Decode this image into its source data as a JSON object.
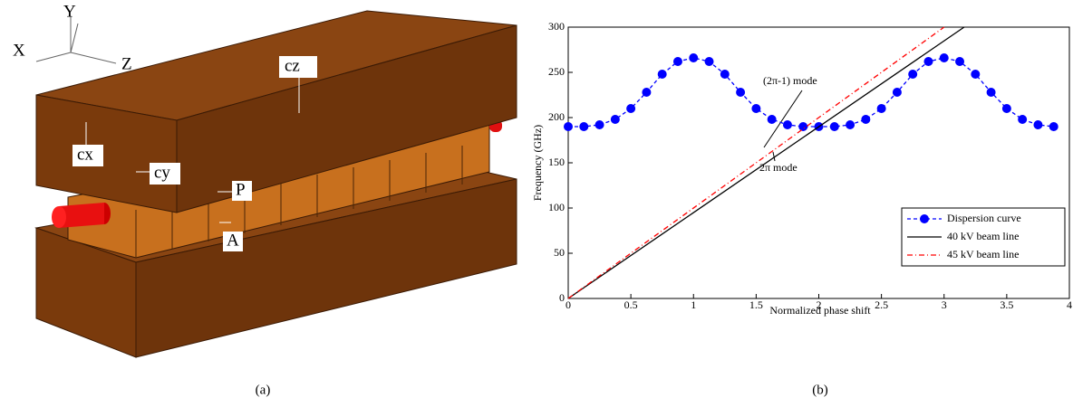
{
  "diagram": {
    "axes": {
      "x": "X",
      "y": "Y",
      "z": "Z"
    },
    "labels": {
      "cz": "cz",
      "cx": "cx",
      "cy": "cy",
      "p": "P",
      "a": "A"
    }
  },
  "chart_data": {
    "type": "line",
    "xlabel": "Normalized phase shift",
    "ylabel": "Frequency (GHz)",
    "xlim": [
      0,
      4
    ],
    "ylim": [
      0,
      300
    ],
    "xticks": [
      0,
      0.5,
      1,
      1.5,
      2,
      2.5,
      3,
      3.5,
      4
    ],
    "yticks": [
      0,
      50,
      100,
      150,
      200,
      250,
      300
    ],
    "legend": "lower right",
    "annotations": [
      "(2π-1) mode",
      "2π mode"
    ],
    "series": [
      {
        "name": "Dispersion curve",
        "color": "#0000ff",
        "x": [
          0,
          0.125,
          0.25,
          0.375,
          0.5,
          0.625,
          0.75,
          0.875,
          1,
          1.125,
          1.25,
          1.375,
          1.5,
          1.625,
          1.75,
          1.875,
          2,
          2.125,
          2.25,
          2.375,
          2.5,
          2.625,
          2.75,
          2.875,
          3,
          3.125,
          3.25,
          3.375,
          3.5,
          3.625,
          3.75,
          3.875
        ],
        "values": [
          190,
          190,
          192,
          198,
          210,
          228,
          248,
          262,
          266,
          262,
          248,
          228,
          210,
          198,
          192,
          190,
          190,
          190,
          192,
          198,
          210,
          228,
          248,
          262,
          266,
          262,
          248,
          228,
          210,
          198,
          192,
          190
        ]
      },
      {
        "name": "40 kV beam line",
        "color": "#000000",
        "x": [
          0,
          3.16
        ],
        "values": [
          0,
          300
        ]
      },
      {
        "name": "45 kV beam line",
        "color": "#ff0000",
        "x": [
          0,
          3.0
        ],
        "values": [
          0,
          300
        ]
      }
    ]
  },
  "captions": [
    "(a)",
    "(b)"
  ]
}
